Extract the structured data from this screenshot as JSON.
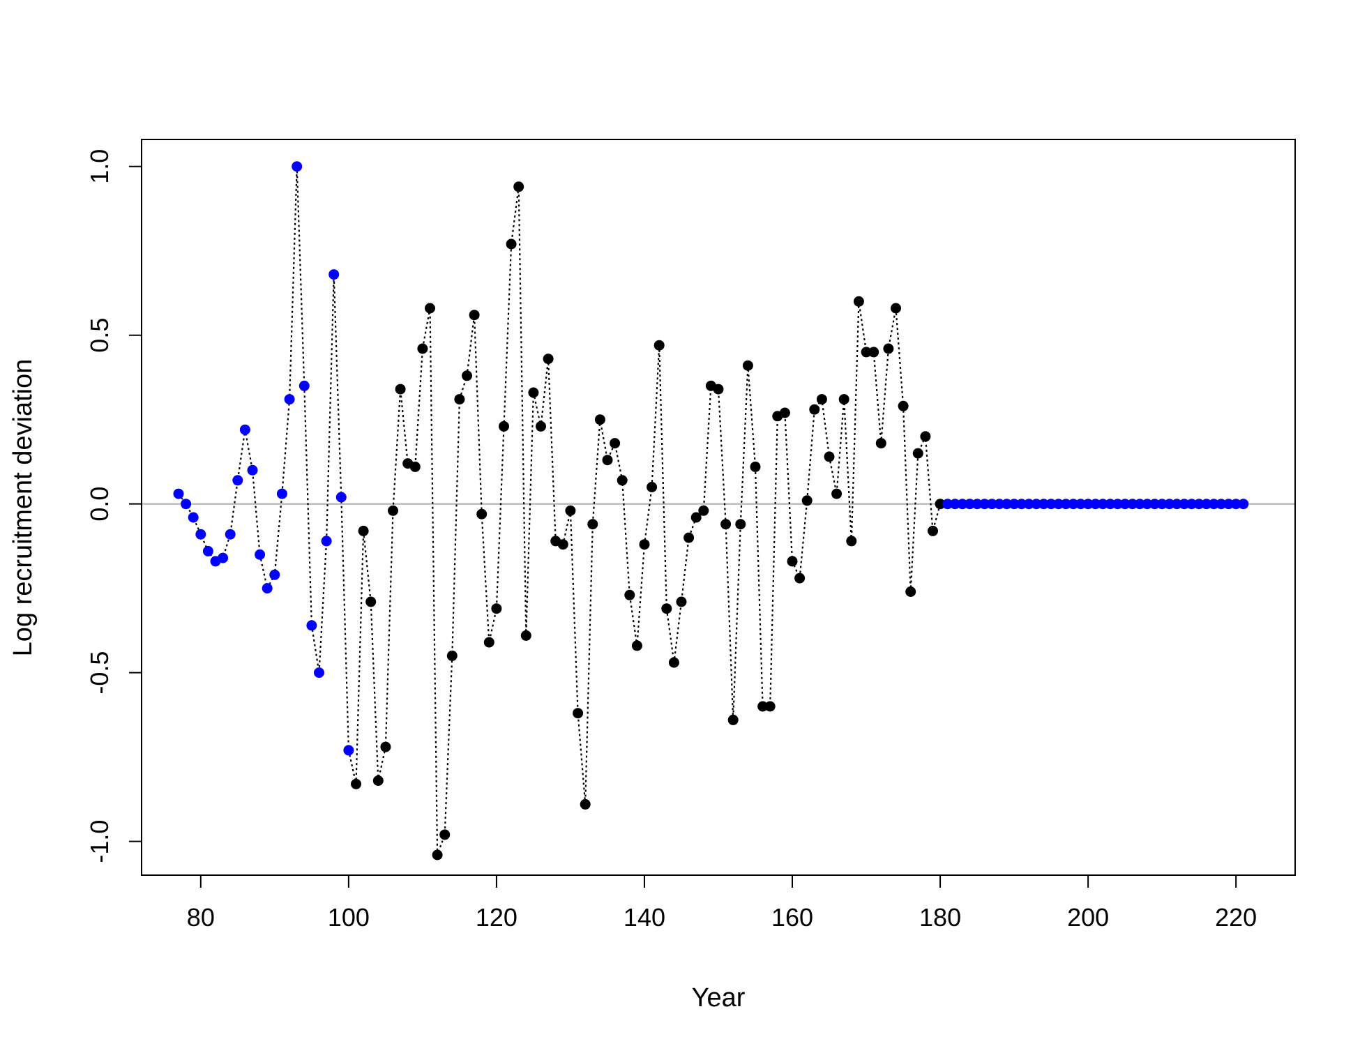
{
  "chart_data": {
    "type": "scatter",
    "title": "",
    "xlabel": "Year",
    "ylabel": "Log recruitment deviation",
    "xlim": [
      72,
      228
    ],
    "ylim": [
      -1.1,
      1.08
    ],
    "x_ticks": [
      80,
      100,
      120,
      140,
      160,
      180,
      200,
      220
    ],
    "x_tick_labels": [
      "80",
      "100",
      "120",
      "140",
      "160",
      "180",
      "200",
      "220"
    ],
    "y_ticks": [
      -1.0,
      -0.5,
      0.0,
      0.5,
      1.0
    ],
    "y_tick_labels": [
      "-1.0",
      "-0.5",
      "0.0",
      "0.5",
      "1.0"
    ],
    "reference_line": {
      "y": 0,
      "color": "#bebebe"
    },
    "connector": {
      "color": "#000000",
      "style": "dotted"
    },
    "colors": {
      "early": "#0000ff",
      "main": "#000000",
      "forecast": "#0000ff"
    },
    "series": [
      {
        "color_key": "early",
        "x": [
          77,
          78,
          79,
          80,
          81,
          82,
          83,
          84,
          85,
          86,
          87,
          88,
          89,
          90,
          91,
          92,
          93,
          94,
          95,
          96,
          97,
          98,
          99,
          100
        ],
        "y": [
          0.03,
          0.0,
          -0.04,
          -0.09,
          -0.14,
          -0.17,
          -0.16,
          -0.09,
          0.07,
          0.22,
          0.1,
          -0.15,
          -0.25,
          -0.21,
          0.03,
          0.31,
          1.0,
          0.35,
          -0.36,
          -0.5,
          -0.11,
          0.68,
          0.02,
          -0.73
        ]
      },
      {
        "color_key": "main",
        "x": [
          101,
          102,
          103,
          104,
          105,
          106,
          107,
          108,
          109,
          110,
          111,
          112,
          113,
          114,
          115,
          116,
          117,
          118,
          119,
          120,
          121,
          122,
          123,
          124,
          125,
          126,
          127,
          128,
          129,
          130,
          131,
          132,
          133,
          134,
          135,
          136,
          137,
          138,
          139,
          140,
          141,
          142,
          143,
          144,
          145,
          146,
          147,
          148,
          149,
          150,
          151,
          152,
          153,
          154,
          155,
          156,
          157,
          158,
          159,
          160,
          161,
          162,
          163,
          164,
          165,
          166,
          167,
          168,
          169,
          170,
          171,
          172,
          173,
          174,
          175,
          176,
          177,
          178,
          179,
          180
        ],
        "y": [
          -0.83,
          -0.08,
          -0.29,
          -0.82,
          -0.72,
          -0.02,
          0.34,
          0.12,
          0.11,
          0.46,
          0.58,
          -1.04,
          -0.98,
          -0.45,
          0.31,
          0.38,
          0.56,
          -0.03,
          -0.41,
          -0.31,
          0.23,
          0.77,
          0.94,
          -0.39,
          0.33,
          0.23,
          0.43,
          -0.11,
          -0.12,
          -0.02,
          -0.62,
          -0.89,
          -0.06,
          0.25,
          0.13,
          0.18,
          0.07,
          -0.27,
          -0.42,
          -0.12,
          0.05,
          0.47,
          -0.31,
          -0.47,
          -0.29,
          -0.1,
          -0.04,
          -0.02,
          0.35,
          0.34,
          -0.06,
          -0.64,
          -0.06,
          0.41,
          0.11,
          -0.6,
          -0.6,
          0.26,
          0.27,
          -0.17,
          -0.22,
          0.01,
          0.28,
          0.31,
          0.14,
          0.03,
          0.31,
          -0.11,
          0.6,
          0.45,
          0.45,
          0.18,
          0.46,
          0.58,
          0.29,
          -0.26,
          0.15,
          0.2,
          -0.08,
          0.0
        ]
      },
      {
        "color_key": "forecast",
        "x": [
          181,
          182,
          183,
          184,
          185,
          186,
          187,
          188,
          189,
          190,
          191,
          192,
          193,
          194,
          195,
          196,
          197,
          198,
          199,
          200,
          201,
          202,
          203,
          204,
          205,
          206,
          207,
          208,
          209,
          210,
          211,
          212,
          213,
          214,
          215,
          216,
          217,
          218,
          219,
          220,
          221
        ],
        "y": [
          0,
          0,
          0,
          0,
          0,
          0,
          0,
          0,
          0,
          0,
          0,
          0,
          0,
          0,
          0,
          0,
          0,
          0,
          0,
          0,
          0,
          0,
          0,
          0,
          0,
          0,
          0,
          0,
          0,
          0,
          0,
          0,
          0,
          0,
          0,
          0,
          0,
          0,
          0,
          0,
          0
        ]
      }
    ]
  }
}
